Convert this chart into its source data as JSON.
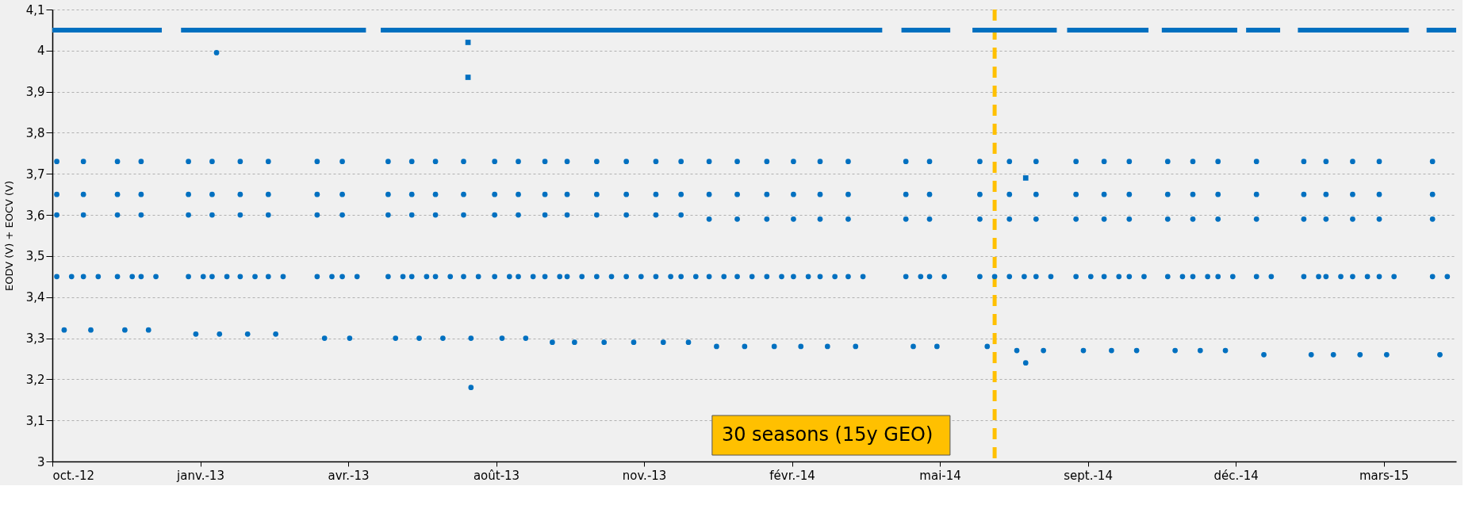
{
  "chart_data": {
    "type": "scatter",
    "ylabel": "EODV (V) + EOCV (V)",
    "xlim": [
      "2012-10-08",
      "2015-05-15"
    ],
    "xticks": [
      {
        "value": "2012-10-08",
        "label": "oct.-12"
      },
      {
        "value": "2013-01-16",
        "label": "janv.-13"
      },
      {
        "value": "2013-04-26",
        "label": "avr.-13"
      },
      {
        "value": "2013-08-04",
        "label": "août-13"
      },
      {
        "value": "2013-11-12",
        "label": "nov.-13"
      },
      {
        "value": "2014-02-20",
        "label": "févr.-14"
      },
      {
        "value": "2014-05-31",
        "label": "mai-14"
      },
      {
        "value": "2014-09-08",
        "label": "sept.-14"
      },
      {
        "value": "2014-12-17",
        "label": "déc.-14"
      },
      {
        "value": "2015-03-27",
        "label": "mars-15"
      }
    ],
    "ylim": [
      3,
      4.1
    ],
    "yticks": [
      3,
      {
        "value": 3.1,
        "label": "3,1"
      },
      {
        "value": 3.2,
        "label": "3,2"
      },
      {
        "value": 3.3,
        "label": "3,3"
      },
      {
        "value": 3.4,
        "label": "3,4"
      },
      {
        "value": 3.5,
        "label": "3,5"
      },
      {
        "value": 3.6,
        "label": "3,6"
      },
      {
        "value": 3.7,
        "label": "3,7"
      },
      {
        "value": 3.8,
        "label": "3,8"
      },
      {
        "value": 3.9,
        "label": "3,9"
      },
      4,
      {
        "value": 4.1,
        "label": "4,1"
      }
    ],
    "grid": "y",
    "ref_lines": [
      {
        "axis": "x",
        "value": "2014-07-07",
        "color": "#ffc000",
        "line_style": "dashed"
      }
    ],
    "annotations": [
      "30 seasons (15y GEO)"
    ],
    "series": [
      {
        "type": "line",
        "color": "#0070c0",
        "line_style": "solid",
        "x": [
          "2012-10-08",
          "2012-12-21",
          "2012-12-27",
          "2013-01-03",
          "2013-05-08",
          "2013-05-12",
          "2013-05-18",
          "2014-04-22",
          "2014-04-28",
          "2014-05-05",
          "2014-06-07",
          "2014-06-14",
          "2014-06-22",
          "2014-08-18",
          "2014-08-21",
          "2014-08-25",
          "2014-10-19",
          "2014-10-23",
          "2014-10-28",
          "2014-12-18",
          "2014-12-21",
          "2014-12-24",
          "2015-01-16",
          "2015-01-22",
          "2015-01-28",
          "2015-04-13",
          "2015-04-19",
          "2015-04-25",
          "2015-05-15"
        ],
        "values": [
          4.05,
          4.05,
          null,
          4.05,
          4.05,
          null,
          4.05,
          4.05,
          null,
          4.05,
          4.05,
          null,
          4.05,
          4.05,
          null,
          4.05,
          4.05,
          null,
          4.05,
          4.05,
          null,
          4.05,
          4.05,
          null,
          4.05,
          4.05,
          null,
          4.05,
          4.05
        ]
      },
      {
        "type": "scatter",
        "color": "#0070c0",
        "marker": "square",
        "x": [
          "2013-07-16",
          "2013-07-16",
          "2014-07-28"
        ],
        "values": [
          4.02,
          3.935,
          3.69
        ]
      },
      {
        "type": "scatter",
        "color": "#0070c0",
        "marker": "circle",
        "x": [
          "2013-01-27",
          "2013-07-18",
          "2014-07-28"
        ],
        "values": [
          3.995,
          3.18,
          3.24
        ]
      },
      {
        "type": "scatter",
        "color": "#0070c0",
        "marker": "circle",
        "x": [
          "2012-10-11",
          "2012-10-11",
          "2012-10-11",
          "2012-10-11",
          "2012-10-16",
          "2012-10-21"
        ],
        "values": [
          3.73,
          3.65,
          3.6,
          3.45,
          3.32,
          3.45
        ]
      },
      {
        "type": "scatter",
        "color": "#0070c0",
        "marker": "circle",
        "x": [
          "2012-10-29",
          "2012-10-29",
          "2012-10-29",
          "2012-10-29",
          "2012-11-03",
          "2012-11-08"
        ],
        "values": [
          3.73,
          3.65,
          3.6,
          3.45,
          3.32,
          3.45
        ]
      },
      {
        "type": "scatter",
        "color": "#0070c0",
        "marker": "circle",
        "x": [
          "2012-11-21",
          "2012-11-21",
          "2012-11-21",
          "2012-11-21",
          "2012-11-26",
          "2012-12-01"
        ],
        "values": [
          3.73,
          3.65,
          3.6,
          3.45,
          3.32,
          3.45
        ]
      },
      {
        "type": "scatter",
        "color": "#0070c0",
        "marker": "circle",
        "x": [
          "2012-12-07",
          "2012-12-07",
          "2012-12-07",
          "2012-12-07",
          "2012-12-12",
          "2012-12-17"
        ],
        "values": [
          3.73,
          3.65,
          3.6,
          3.45,
          3.32,
          3.45
        ]
      },
      {
        "type": "scatter",
        "color": "#0070c0",
        "marker": "circle",
        "x": [
          "2013-01-08",
          "2013-01-08",
          "2013-01-08",
          "2013-01-08",
          "2013-01-13",
          "2013-01-18"
        ],
        "values": [
          3.73,
          3.65,
          3.6,
          3.45,
          3.31,
          3.45
        ]
      },
      {
        "type": "scatter",
        "color": "#0070c0",
        "marker": "circle",
        "x": [
          "2013-01-24",
          "2013-01-24",
          "2013-01-24",
          "2013-01-24",
          "2013-01-29",
          "2013-02-03"
        ],
        "values": [
          3.73,
          3.65,
          3.6,
          3.45,
          3.31,
          3.45
        ]
      },
      {
        "type": "scatter",
        "color": "#0070c0",
        "marker": "circle",
        "x": [
          "2013-02-12",
          "2013-02-12",
          "2013-02-12",
          "2013-02-12",
          "2013-02-17",
          "2013-02-22"
        ],
        "values": [
          3.73,
          3.65,
          3.6,
          3.45,
          3.31,
          3.45
        ]
      },
      {
        "type": "scatter",
        "color": "#0070c0",
        "marker": "circle",
        "x": [
          "2013-03-03",
          "2013-03-03",
          "2013-03-03",
          "2013-03-03",
          "2013-03-08",
          "2013-03-13"
        ],
        "values": [
          3.73,
          3.65,
          3.6,
          3.45,
          3.31,
          3.45
        ]
      },
      {
        "type": "scatter",
        "color": "#0070c0",
        "marker": "circle",
        "x": [
          "2013-04-05",
          "2013-04-05",
          "2013-04-05",
          "2013-04-05",
          "2013-04-10",
          "2013-04-15"
        ],
        "values": [
          3.73,
          3.65,
          3.6,
          3.45,
          3.3,
          3.45
        ]
      },
      {
        "type": "scatter",
        "color": "#0070c0",
        "marker": "circle",
        "x": [
          "2013-04-22",
          "2013-04-22",
          "2013-04-22",
          "2013-04-22",
          "2013-04-27",
          "2013-05-02"
        ],
        "values": [
          3.73,
          3.65,
          3.6,
          3.45,
          3.3,
          3.45
        ]
      },
      {
        "type": "scatter",
        "color": "#0070c0",
        "marker": "circle",
        "x": [
          "2013-05-23",
          "2013-05-23",
          "2013-05-23",
          "2013-05-23",
          "2013-05-28",
          "2013-06-02"
        ],
        "values": [
          3.73,
          3.65,
          3.6,
          3.45,
          3.3,
          3.45
        ]
      },
      {
        "type": "scatter",
        "color": "#0070c0",
        "marker": "circle",
        "x": [
          "2013-06-08",
          "2013-06-08",
          "2013-06-08",
          "2013-06-08",
          "2013-06-13",
          "2013-06-18"
        ],
        "values": [
          3.73,
          3.65,
          3.6,
          3.45,
          3.3,
          3.45
        ]
      },
      {
        "type": "scatter",
        "color": "#0070c0",
        "marker": "circle",
        "x": [
          "2013-06-24",
          "2013-06-24",
          "2013-06-24",
          "2013-06-24",
          "2013-06-29",
          "2013-07-04"
        ],
        "values": [
          3.73,
          3.65,
          3.6,
          3.45,
          3.3,
          3.45
        ]
      },
      {
        "type": "scatter",
        "color": "#0070c0",
        "marker": "circle",
        "x": [
          "2013-07-13",
          "2013-07-13",
          "2013-07-13",
          "2013-07-13",
          "2013-07-18",
          "2013-07-23"
        ],
        "values": [
          3.73,
          3.65,
          3.6,
          3.45,
          3.3,
          3.45
        ]
      },
      {
        "type": "scatter",
        "color": "#0070c0",
        "marker": "circle",
        "x": [
          "2013-08-03",
          "2013-08-03",
          "2013-08-03",
          "2013-08-03",
          "2013-08-08",
          "2013-08-13"
        ],
        "values": [
          3.73,
          3.65,
          3.6,
          3.45,
          3.3,
          3.45
        ]
      },
      {
        "type": "scatter",
        "color": "#0070c0",
        "marker": "circle",
        "x": [
          "2013-08-19",
          "2013-08-19",
          "2013-08-19",
          "2013-08-19",
          "2013-08-24",
          "2013-08-29"
        ],
        "values": [
          3.73,
          3.65,
          3.6,
          3.45,
          3.3,
          3.45
        ]
      },
      {
        "type": "scatter",
        "color": "#0070c0",
        "marker": "circle",
        "x": [
          "2013-09-06",
          "2013-09-06",
          "2013-09-06",
          "2013-09-06",
          "2013-09-11",
          "2013-09-16"
        ],
        "values": [
          3.73,
          3.65,
          3.6,
          3.45,
          3.29,
          3.45
        ]
      },
      {
        "type": "scatter",
        "color": "#0070c0",
        "marker": "circle",
        "x": [
          "2013-09-21",
          "2013-09-21",
          "2013-09-21",
          "2013-09-21",
          "2013-09-26",
          "2013-10-01"
        ],
        "values": [
          3.73,
          3.65,
          3.6,
          3.45,
          3.29,
          3.45
        ]
      },
      {
        "type": "scatter",
        "color": "#0070c0",
        "marker": "circle",
        "x": [
          "2013-10-11",
          "2013-10-11",
          "2013-10-11",
          "2013-10-11",
          "2013-10-16",
          "2013-10-21"
        ],
        "values": [
          3.73,
          3.65,
          3.6,
          3.45,
          3.29,
          3.45
        ]
      },
      {
        "type": "scatter",
        "color": "#0070c0",
        "marker": "circle",
        "x": [
          "2013-10-31",
          "2013-10-31",
          "2013-10-31",
          "2013-10-31",
          "2013-11-05",
          "2013-11-10"
        ],
        "values": [
          3.73,
          3.65,
          3.6,
          3.45,
          3.29,
          3.45
        ]
      },
      {
        "type": "scatter",
        "color": "#0070c0",
        "marker": "circle",
        "x": [
          "2013-11-20",
          "2013-11-20",
          "2013-11-20",
          "2013-11-20",
          "2013-11-25",
          "2013-11-30"
        ],
        "values": [
          3.73,
          3.65,
          3.6,
          3.45,
          3.29,
          3.45
        ]
      },
      {
        "type": "scatter",
        "color": "#0070c0",
        "marker": "circle",
        "x": [
          "2013-12-07",
          "2013-12-07",
          "2013-12-07",
          "2013-12-07",
          "2013-12-12",
          "2013-12-17"
        ],
        "values": [
          3.73,
          3.65,
          3.6,
          3.45,
          3.29,
          3.45
        ]
      },
      {
        "type": "scatter",
        "color": "#0070c0",
        "marker": "circle",
        "x": [
          "2013-12-26",
          "2013-12-26",
          "2013-12-26",
          "2013-12-26",
          "2013-12-31",
          "2014-01-05"
        ],
        "values": [
          3.73,
          3.65,
          3.59,
          3.45,
          3.28,
          3.45
        ]
      },
      {
        "type": "scatter",
        "color": "#0070c0",
        "marker": "circle",
        "x": [
          "2014-01-14",
          "2014-01-14",
          "2014-01-14",
          "2014-01-14",
          "2014-01-19",
          "2014-01-24"
        ],
        "values": [
          3.73,
          3.65,
          3.59,
          3.45,
          3.28,
          3.45
        ]
      },
      {
        "type": "scatter",
        "color": "#0070c0",
        "marker": "circle",
        "x": [
          "2014-02-03",
          "2014-02-03",
          "2014-02-03",
          "2014-02-03",
          "2014-02-08",
          "2014-02-13"
        ],
        "values": [
          3.73,
          3.65,
          3.59,
          3.45,
          3.28,
          3.45
        ]
      },
      {
        "type": "scatter",
        "color": "#0070c0",
        "marker": "circle",
        "x": [
          "2014-02-21",
          "2014-02-21",
          "2014-02-21",
          "2014-02-21",
          "2014-02-26",
          "2014-03-03"
        ],
        "values": [
          3.73,
          3.65,
          3.59,
          3.45,
          3.28,
          3.45
        ]
      },
      {
        "type": "scatter",
        "color": "#0070c0",
        "marker": "circle",
        "x": [
          "2014-03-11",
          "2014-03-11",
          "2014-03-11",
          "2014-03-11",
          "2014-03-16",
          "2014-03-21"
        ],
        "values": [
          3.73,
          3.65,
          3.59,
          3.45,
          3.28,
          3.45
        ]
      },
      {
        "type": "scatter",
        "color": "#0070c0",
        "marker": "circle",
        "x": [
          "2014-03-30",
          "2014-03-30",
          "2014-03-30",
          "2014-03-30",
          "2014-04-04",
          "2014-04-09"
        ],
        "values": [
          3.73,
          3.65,
          3.59,
          3.45,
          3.28,
          3.45
        ]
      },
      {
        "type": "scatter",
        "color": "#0070c0",
        "marker": "circle",
        "x": [
          "2014-05-08",
          "2014-05-08",
          "2014-05-08",
          "2014-05-08",
          "2014-05-13",
          "2014-05-18"
        ],
        "values": [
          3.73,
          3.65,
          3.59,
          3.45,
          3.28,
          3.45
        ]
      },
      {
        "type": "scatter",
        "color": "#0070c0",
        "marker": "circle",
        "x": [
          "2014-05-24",
          "2014-05-24",
          "2014-05-24",
          "2014-05-24",
          "2014-05-29",
          "2014-06-03"
        ],
        "values": [
          3.73,
          3.65,
          3.59,
          3.45,
          3.28,
          3.45
        ]
      },
      {
        "type": "scatter",
        "color": "#0070c0",
        "marker": "circle",
        "x": [
          "2014-06-27",
          "2014-06-27",
          "2014-06-27",
          "2014-06-27",
          "2014-07-02",
          "2014-07-07"
        ],
        "values": [
          3.73,
          3.65,
          3.59,
          3.45,
          3.28,
          3.45
        ]
      },
      {
        "type": "scatter",
        "color": "#0070c0",
        "marker": "circle",
        "x": [
          "2014-07-17",
          "2014-07-17",
          "2014-07-17",
          "2014-07-17",
          "2014-07-22",
          "2014-07-27"
        ],
        "values": [
          3.73,
          3.65,
          3.59,
          3.45,
          3.27,
          3.45
        ]
      },
      {
        "type": "scatter",
        "color": "#0070c0",
        "marker": "circle",
        "x": [
          "2014-08-04",
          "2014-08-04",
          "2014-08-04",
          "2014-08-04",
          "2014-08-09",
          "2014-08-14"
        ],
        "values": [
          3.73,
          3.65,
          3.59,
          3.45,
          3.27,
          3.45
        ]
      },
      {
        "type": "scatter",
        "color": "#0070c0",
        "marker": "circle",
        "x": [
          "2014-08-31",
          "2014-08-31",
          "2014-08-31",
          "2014-08-31",
          "2014-09-05",
          "2014-09-10"
        ],
        "values": [
          3.73,
          3.65,
          3.59,
          3.45,
          3.27,
          3.45
        ]
      },
      {
        "type": "scatter",
        "color": "#0070c0",
        "marker": "circle",
        "x": [
          "2014-09-19",
          "2014-09-19",
          "2014-09-19",
          "2014-09-19",
          "2014-09-24",
          "2014-09-29"
        ],
        "values": [
          3.73,
          3.65,
          3.59,
          3.45,
          3.27,
          3.45
        ]
      },
      {
        "type": "scatter",
        "color": "#0070c0",
        "marker": "circle",
        "x": [
          "2014-10-06",
          "2014-10-06",
          "2014-10-06",
          "2014-10-06",
          "2014-10-11",
          "2014-10-16"
        ],
        "values": [
          3.73,
          3.65,
          3.59,
          3.45,
          3.27,
          3.45
        ]
      },
      {
        "type": "scatter",
        "color": "#0070c0",
        "marker": "circle",
        "x": [
          "2014-11-01",
          "2014-11-01",
          "2014-11-01",
          "2014-11-01",
          "2014-11-06",
          "2014-11-11"
        ],
        "values": [
          3.73,
          3.65,
          3.59,
          3.45,
          3.27,
          3.45
        ]
      },
      {
        "type": "scatter",
        "color": "#0070c0",
        "marker": "circle",
        "x": [
          "2014-11-18",
          "2014-11-18",
          "2014-11-18",
          "2014-11-18",
          "2014-11-23",
          "2014-11-28"
        ],
        "values": [
          3.73,
          3.65,
          3.59,
          3.45,
          3.27,
          3.45
        ]
      },
      {
        "type": "scatter",
        "color": "#0070c0",
        "marker": "circle",
        "x": [
          "2014-12-05",
          "2014-12-05",
          "2014-12-05",
          "2014-12-05",
          "2014-12-10",
          "2014-12-15"
        ],
        "values": [
          3.73,
          3.65,
          3.59,
          3.45,
          3.27,
          3.45
        ]
      },
      {
        "type": "scatter",
        "color": "#0070c0",
        "marker": "circle",
        "x": [
          "2014-12-31",
          "2014-12-31",
          "2014-12-31",
          "2014-12-31",
          "2015-01-05",
          "2015-01-10"
        ],
        "values": [
          3.73,
          3.65,
          3.59,
          3.45,
          3.26,
          3.45
        ]
      },
      {
        "type": "scatter",
        "color": "#0070c0",
        "marker": "circle",
        "x": [
          "2015-02-01",
          "2015-02-01",
          "2015-02-01",
          "2015-02-01",
          "2015-02-06",
          "2015-02-11"
        ],
        "values": [
          3.73,
          3.65,
          3.59,
          3.45,
          3.26,
          3.45
        ]
      },
      {
        "type": "scatter",
        "color": "#0070c0",
        "marker": "circle",
        "x": [
          "2015-02-16",
          "2015-02-16",
          "2015-02-16",
          "2015-02-16",
          "2015-02-21",
          "2015-02-26"
        ],
        "values": [
          3.73,
          3.65,
          3.59,
          3.45,
          3.26,
          3.45
        ]
      },
      {
        "type": "scatter",
        "color": "#0070c0",
        "marker": "circle",
        "x": [
          "2015-03-06",
          "2015-03-06",
          "2015-03-06",
          "2015-03-06",
          "2015-03-11",
          "2015-03-16"
        ],
        "values": [
          3.73,
          3.65,
          3.59,
          3.45,
          3.26,
          3.45
        ]
      },
      {
        "type": "scatter",
        "color": "#0070c0",
        "marker": "circle",
        "x": [
          "2015-03-24",
          "2015-03-24",
          "2015-03-24",
          "2015-03-24",
          "2015-03-29",
          "2015-04-03"
        ],
        "values": [
          3.73,
          3.65,
          3.59,
          3.45,
          3.26,
          3.45
        ]
      },
      {
        "type": "scatter",
        "color": "#0070c0",
        "marker": "circle",
        "x": [
          "2015-04-29",
          "2015-04-29",
          "2015-04-29",
          "2015-04-29",
          "2015-05-04",
          "2015-05-09"
        ],
        "values": [
          3.73,
          3.65,
          3.59,
          3.45,
          3.26,
          3.45
        ]
      }
    ]
  }
}
